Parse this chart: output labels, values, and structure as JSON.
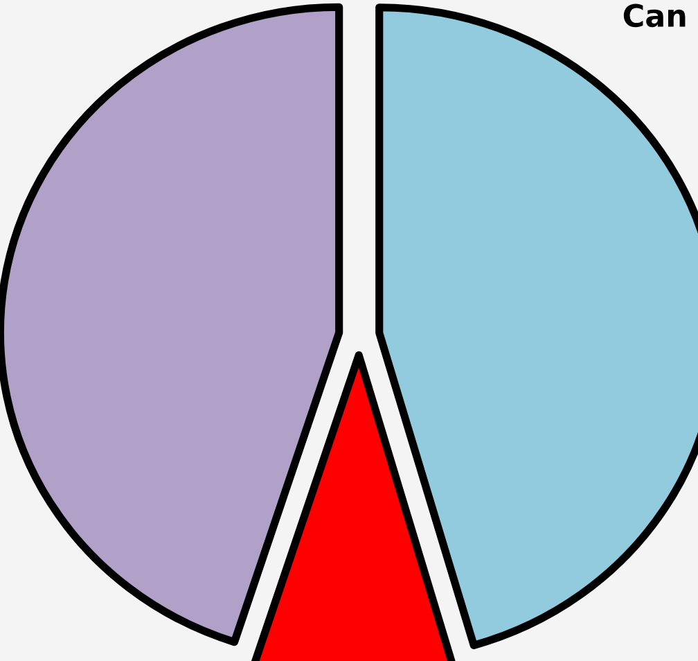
{
  "chart_data": {
    "type": "pie",
    "title": "Can",
    "categories": [
      null,
      null,
      null
    ],
    "values": [
      45.5,
      9.5,
      45
    ],
    "colors": [
      "#92cbdd",
      "#ff0000",
      "#b1a0c7"
    ]
  }
}
